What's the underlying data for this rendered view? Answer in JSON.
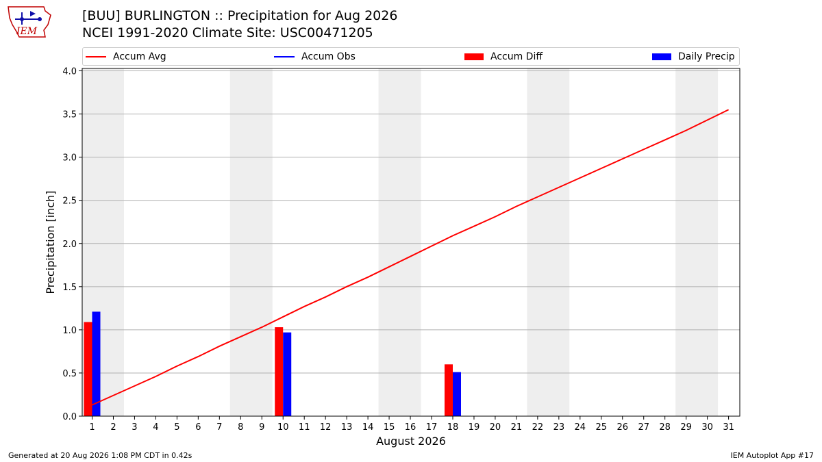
{
  "header": {
    "title_line1": "[BUU] BURLINGTON :: Precipitation for Aug 2026",
    "title_line2": "NCEI 1991-2020 Climate Site: USC00471205"
  },
  "logo": {
    "text": "IEM"
  },
  "legend": [
    {
      "label": "Accum Avg",
      "kind": "line",
      "color": "#ff0000"
    },
    {
      "label": "Accum Obs",
      "kind": "line",
      "color": "#0000ff"
    },
    {
      "label": "Accum Diff",
      "kind": "patch",
      "color": "#ff0000"
    },
    {
      "label": "Daily Precip",
      "kind": "patch",
      "color": "#0000ff"
    }
  ],
  "footer": {
    "left": "Generated at 20 Aug 2026 1:08 PM CDT in 0.42s",
    "right": "IEM Autoplot App #17"
  },
  "chart_data": {
    "type": "bar",
    "xlabel": "August 2026",
    "ylabel": "Precipitation [inch]",
    "ylim": [
      0,
      4.0
    ],
    "yticks": [
      "0.0",
      "0.5",
      "1.0",
      "1.5",
      "2.0",
      "2.5",
      "3.0",
      "3.5",
      "4.0"
    ],
    "days": [
      1,
      2,
      3,
      4,
      5,
      6,
      7,
      8,
      9,
      10,
      11,
      12,
      13,
      14,
      15,
      16,
      17,
      18,
      19,
      20,
      21,
      22,
      23,
      24,
      25,
      26,
      27,
      28,
      29,
      30,
      31
    ],
    "weekend_bands": [
      [
        1,
        2
      ],
      [
        8,
        9
      ],
      [
        15,
        16
      ],
      [
        22,
        23
      ],
      [
        29,
        30
      ]
    ],
    "grid": "horizontal",
    "accum_avg": [
      0.13,
      0.24,
      0.35,
      0.46,
      0.58,
      0.69,
      0.81,
      0.92,
      1.03,
      1.15,
      1.27,
      1.38,
      1.5,
      1.61,
      1.73,
      1.85,
      1.97,
      2.09,
      2.2,
      2.31,
      2.43,
      2.54,
      2.65,
      2.76,
      2.87,
      2.98,
      3.09,
      3.2,
      3.31,
      3.43,
      3.55
    ],
    "accum_diff": [
      {
        "day": 1,
        "value": 1.09
      },
      {
        "day": 10,
        "value": 1.03
      },
      {
        "day": 18,
        "value": 0.6
      }
    ],
    "daily_precip": [
      {
        "day": 1,
        "value": 1.21
      },
      {
        "day": 10,
        "value": 0.97
      },
      {
        "day": 18,
        "value": 0.51
      }
    ],
    "colors": {
      "avg": "#ff0000",
      "diff": "#ff0000",
      "daily": "#0000ff",
      "band": "#eeeeee",
      "grid": "#b0b0b0"
    }
  }
}
